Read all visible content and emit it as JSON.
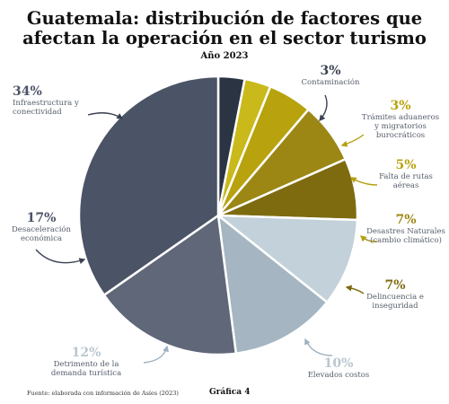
{
  "title_line1": "Guatemala: distribución de factores que",
  "title_line2": "afectan la operación en el sector turismo",
  "subtitle": "Año 2023",
  "source": "Fuente: elaborada con información de Asíes (2023)",
  "chart_number": "Gráfica 4",
  "chart_data": {
    "type": "pie",
    "title": "Guatemala: distribución de factores que afectan la operación en el sector turismo",
    "subtitle": "Año 2023",
    "unit": "%",
    "slices": [
      {
        "label": "Contaminación",
        "value": 3,
        "pct": "3%",
        "color": "#2a3442"
      },
      {
        "label": "Trámites aduaneros y migratorios burocráticos",
        "value": 3,
        "pct": "3%",
        "color": "#c9b91a"
      },
      {
        "label": "Falta de rutas aéreas",
        "value": 5,
        "pct": "5%",
        "color": "#b8a20e"
      },
      {
        "label": "Desastres Naturales (cambio climático)",
        "value": 7,
        "pct": "7%",
        "color": "#9c8714"
      },
      {
        "label": "Delincuencia e inseguridad",
        "value": 7,
        "pct": "7%",
        "color": "#7e6b10"
      },
      {
        "label": "Elevados costos",
        "value": 10,
        "pct": "10%",
        "color": "#c3d1da"
      },
      {
        "label": "Detrimento de la demanda turística",
        "value": 12,
        "pct": "12%",
        "color": "#a5b6c2"
      },
      {
        "label": "Desaceleración económica",
        "value": 17,
        "pct": "17%",
        "color": "#5f6778"
      },
      {
        "label": "Infraestructura y conectividad",
        "value": 34,
        "pct": "34%",
        "color": "#4b5366"
      }
    ]
  }
}
